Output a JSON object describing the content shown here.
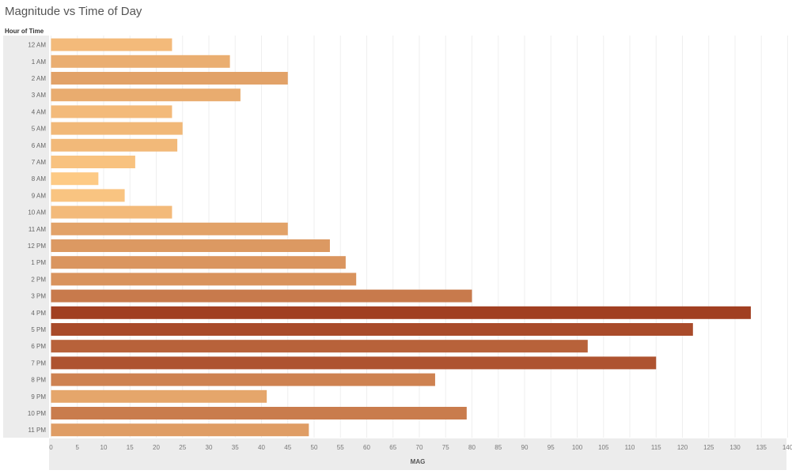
{
  "chart_data": {
    "type": "bar",
    "orientation": "horizontal",
    "title": "Magnitude vs Time of Day",
    "row_header": "Hour of Time",
    "xlabel": "MAG",
    "ylabel": "Hour of Time",
    "xlim": [
      0,
      140
    ],
    "x_ticks": [
      0,
      5,
      10,
      15,
      20,
      25,
      30,
      35,
      40,
      45,
      50,
      55,
      60,
      65,
      70,
      75,
      80,
      85,
      90,
      95,
      100,
      105,
      110,
      115,
      120,
      125,
      130,
      135,
      140
    ],
    "categories": [
      "12 AM",
      "1 AM",
      "2 AM",
      "3 AM",
      "4 AM",
      "5 AM",
      "6 AM",
      "7 AM",
      "8 AM",
      "9 AM",
      "10 AM",
      "11 AM",
      "12 PM",
      "1 PM",
      "2 PM",
      "3 PM",
      "4 PM",
      "5 PM",
      "6 PM",
      "7 PM",
      "8 PM",
      "9 PM",
      "10 PM",
      "11 PM"
    ],
    "values": [
      23,
      34,
      45,
      36,
      23,
      25,
      24,
      16,
      9,
      14,
      23,
      45,
      53,
      56,
      58,
      80,
      133,
      122,
      102,
      115,
      73,
      41,
      79,
      49
    ],
    "grid": true,
    "legend": "none",
    "color_scale": {
      "type": "sequential-orange",
      "low_color": "#fdca85",
      "high_color": "#a13f21"
    }
  }
}
